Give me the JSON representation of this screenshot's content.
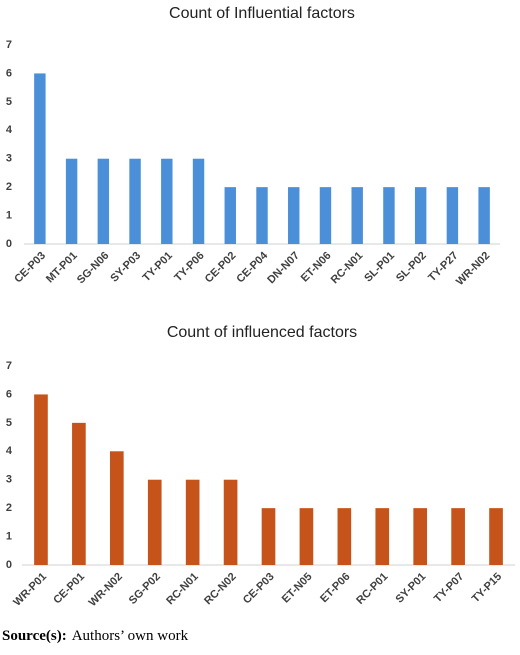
{
  "chart_data": [
    {
      "type": "bar",
      "title": "Count of Influential factors",
      "categories": [
        "CE-P03",
        "MT-P01",
        "SG-N06",
        "SY-P03",
        "TY-P01",
        "TY-P06",
        "CE-P02",
        "CE-P04",
        "DN-N07",
        "ET-N06",
        "RC-N01",
        "SL-P01",
        "SL-P02",
        "TY-P27",
        "WR-N02"
      ],
      "values": [
        6,
        3,
        3,
        3,
        3,
        3,
        2,
        2,
        2,
        2,
        2,
        2,
        2,
        2,
        2
      ],
      "color": "#4a8fd8",
      "ylim": [
        0,
        7
      ],
      "yticks": [
        0,
        1,
        2,
        3,
        4,
        5,
        6,
        7
      ],
      "grid": false
    },
    {
      "type": "bar",
      "title": "Count of influenced factors",
      "categories": [
        "WR-P01",
        "CE-P01",
        "WR-N02",
        "SG-P02",
        "RC-N01",
        "RC-N02",
        "CE-P03",
        "ET-N05",
        "ET-P06",
        "RC-P01",
        "SY-P01",
        "TY-P07",
        "TY-P15"
      ],
      "values": [
        6,
        5,
        4,
        3,
        3,
        3,
        2,
        2,
        2,
        2,
        2,
        2,
        2
      ],
      "color": "#c5531a",
      "ylim": [
        0,
        7
      ],
      "yticks": [
        0,
        1,
        2,
        3,
        4,
        5,
        6,
        7
      ],
      "grid": false
    }
  ],
  "source": {
    "label": "Source(s):",
    "text": "Authors’ own work"
  }
}
